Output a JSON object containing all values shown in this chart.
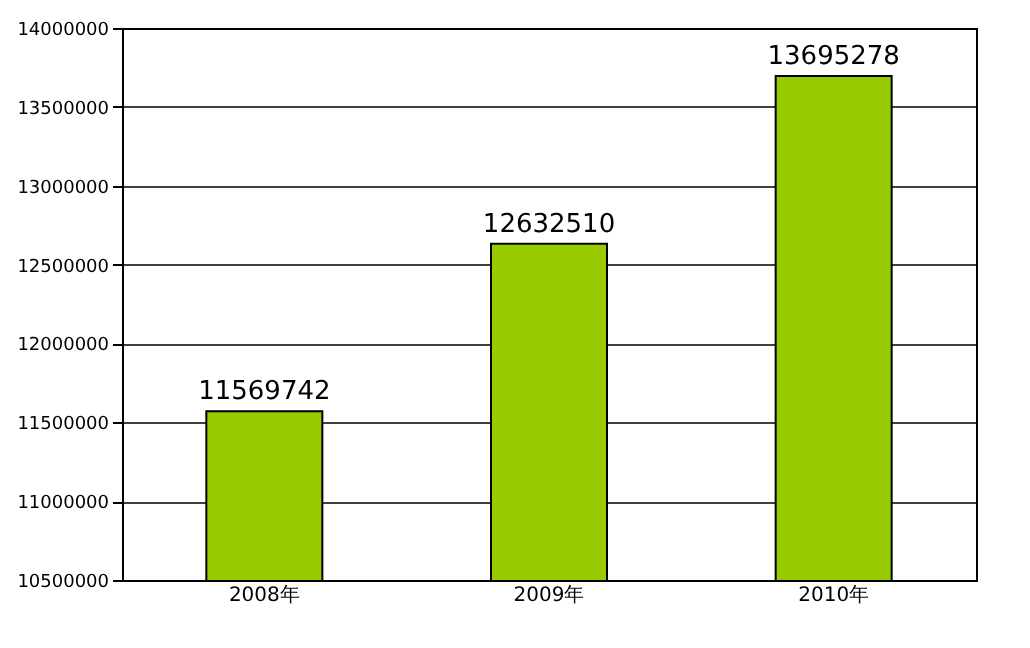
{
  "chart_data": {
    "type": "bar",
    "categories": [
      "2008年",
      "2009年",
      "2010年"
    ],
    "values": [
      11569742,
      12632510,
      13695278
    ],
    "color": "#99cc00",
    "ylim": [
      10500000,
      14000000
    ],
    "yticks": [
      10500000,
      11000000,
      11500000,
      12000000,
      12500000,
      13000000,
      13500000,
      14000000
    ],
    "grid": "y",
    "data_labels": true
  }
}
